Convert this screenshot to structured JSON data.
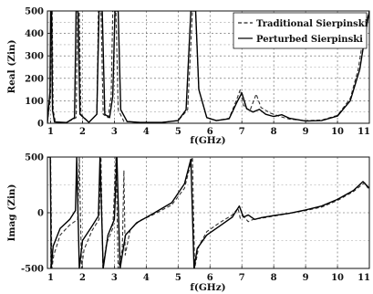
{
  "chart_data": [
    {
      "type": "line",
      "xlabel": "f(GHz)",
      "ylabel": "Real (Zin)",
      "xlim": [
        0.9,
        11
      ],
      "ylim": [
        0,
        500
      ],
      "xticks": [
        1,
        2,
        3,
        4,
        5,
        6,
        7,
        8,
        9,
        10,
        11
      ],
      "yticks": [
        0,
        100,
        200,
        300,
        400,
        500
      ],
      "grid": true,
      "legend": "top-right",
      "series": [
        {
          "name": "Traditional Sierpinski",
          "style": "dashed",
          "points": [
            [
              0.9,
              3
            ],
            [
              1.0,
              120
            ],
            [
              1.02,
              500
            ],
            [
              1.05,
              500
            ],
            [
              1.08,
              60
            ],
            [
              1.15,
              6
            ],
            [
              1.5,
              3
            ],
            [
              1.8,
              25
            ],
            [
              1.85,
              500
            ],
            [
              1.9,
              500
            ],
            [
              1.95,
              40
            ],
            [
              2.2,
              4
            ],
            [
              2.45,
              40
            ],
            [
              2.5,
              500
            ],
            [
              2.58,
              500
            ],
            [
              2.65,
              40
            ],
            [
              2.8,
              25
            ],
            [
              2.9,
              120
            ],
            [
              2.95,
              500
            ],
            [
              3.05,
              500
            ],
            [
              3.12,
              60
            ],
            [
              3.3,
              8
            ],
            [
              3.8,
              4
            ],
            [
              4.5,
              4
            ],
            [
              5.0,
              12
            ],
            [
              5.3,
              60
            ],
            [
              5.45,
              500
            ],
            [
              5.55,
              500
            ],
            [
              5.65,
              150
            ],
            [
              5.9,
              25
            ],
            [
              6.2,
              12
            ],
            [
              6.6,
              22
            ],
            [
              6.85,
              110
            ],
            [
              6.95,
              150
            ],
            [
              7.05,
              80
            ],
            [
              7.25,
              55
            ],
            [
              7.45,
              130
            ],
            [
              7.6,
              70
            ],
            [
              7.9,
              45
            ],
            [
              8.2,
              30
            ],
            [
              8.5,
              18
            ],
            [
              9.0,
              12
            ],
            [
              9.5,
              14
            ],
            [
              10.0,
              35
            ],
            [
              10.4,
              110
            ],
            [
              10.65,
              240
            ],
            [
              10.85,
              420
            ],
            [
              11.0,
              500
            ]
          ]
        },
        {
          "name": "Perturbed Sierpinski",
          "style": "solid",
          "points": [
            [
              0.9,
              3
            ],
            [
              0.98,
              140
            ],
            [
              1.0,
              500
            ],
            [
              1.03,
              500
            ],
            [
              1.06,
              60
            ],
            [
              1.12,
              6
            ],
            [
              1.5,
              3
            ],
            [
              1.75,
              25
            ],
            [
              1.8,
              500
            ],
            [
              1.86,
              500
            ],
            [
              1.92,
              40
            ],
            [
              2.2,
              4
            ],
            [
              2.45,
              40
            ],
            [
              2.52,
              500
            ],
            [
              2.62,
              500
            ],
            [
              2.7,
              40
            ],
            [
              2.85,
              25
            ],
            [
              2.95,
              120
            ],
            [
              3.02,
              500
            ],
            [
              3.12,
              500
            ],
            [
              3.2,
              60
            ],
            [
              3.4,
              8
            ],
            [
              3.8,
              4
            ],
            [
              4.5,
              4
            ],
            [
              5.0,
              12
            ],
            [
              5.25,
              60
            ],
            [
              5.4,
              500
            ],
            [
              5.55,
              500
            ],
            [
              5.65,
              150
            ],
            [
              5.9,
              25
            ],
            [
              6.2,
              12
            ],
            [
              6.6,
              20
            ],
            [
              6.85,
              95
            ],
            [
              7.0,
              135
            ],
            [
              7.15,
              65
            ],
            [
              7.35,
              50
            ],
            [
              7.55,
              62
            ],
            [
              7.75,
              40
            ],
            [
              8.0,
              30
            ],
            [
              8.25,
              38
            ],
            [
              8.5,
              22
            ],
            [
              9.0,
              10
            ],
            [
              9.5,
              12
            ],
            [
              10.0,
              32
            ],
            [
              10.4,
              100
            ],
            [
              10.7,
              240
            ],
            [
              10.9,
              420
            ],
            [
              11.0,
              500
            ]
          ]
        }
      ]
    },
    {
      "type": "line",
      "xlabel": "f(GHz)",
      "ylabel": "Imag (Zin)",
      "xlim": [
        0.9,
        11
      ],
      "ylim": [
        -500,
        500
      ],
      "xticks": [
        1,
        2,
        3,
        4,
        5,
        6,
        7,
        8,
        9,
        10,
        11
      ],
      "yticks": [
        -500,
        0,
        500
      ],
      "grid": true,
      "series": [
        {
          "name": "Traditional Sierpinski",
          "style": "dashed",
          "points": [
            [
              0.9,
              500
            ],
            [
              1.0,
              500
            ],
            [
              1.04,
              -500
            ],
            [
              1.1,
              -380
            ],
            [
              1.3,
              -200
            ],
            [
              1.6,
              -110
            ],
            [
              1.85,
              -60
            ],
            [
              1.9,
              500
            ],
            [
              1.97,
              -500
            ],
            [
              2.05,
              -330
            ],
            [
              2.3,
              -160
            ],
            [
              2.52,
              -60
            ],
            [
              2.58,
              500
            ],
            [
              2.64,
              -500
            ],
            [
              2.75,
              -280
            ],
            [
              2.95,
              -140
            ],
            [
              3.05,
              500
            ],
            [
              3.12,
              -500
            ],
            [
              3.25,
              -330
            ],
            [
              3.3,
              380
            ],
            [
              3.34,
              -380
            ],
            [
              3.5,
              -150
            ],
            [
              3.8,
              -70
            ],
            [
              4.2,
              -20
            ],
            [
              4.8,
              70
            ],
            [
              5.2,
              220
            ],
            [
              5.45,
              500
            ],
            [
              5.52,
              -500
            ],
            [
              5.65,
              -300
            ],
            [
              5.9,
              -170
            ],
            [
              6.3,
              -90
            ],
            [
              6.7,
              -20
            ],
            [
              6.88,
              40
            ],
            [
              6.95,
              -50
            ],
            [
              7.05,
              -30
            ],
            [
              7.2,
              -80
            ],
            [
              7.4,
              -55
            ],
            [
              7.6,
              -50
            ],
            [
              8.0,
              -30
            ],
            [
              8.5,
              -5
            ],
            [
              9.0,
              20
            ],
            [
              9.5,
              50
            ],
            [
              10.0,
              110
            ],
            [
              10.5,
              190
            ],
            [
              10.85,
              270
            ],
            [
              11.0,
              200
            ]
          ]
        },
        {
          "name": "Perturbed Sierpinski",
          "style": "solid",
          "points": [
            [
              0.9,
              500
            ],
            [
              0.99,
              500
            ],
            [
              1.02,
              -500
            ],
            [
              1.08,
              -300
            ],
            [
              1.3,
              -140
            ],
            [
              1.6,
              -60
            ],
            [
              1.78,
              20
            ],
            [
              1.82,
              500
            ],
            [
              1.9,
              -500
            ],
            [
              2.0,
              -250
            ],
            [
              2.3,
              -120
            ],
            [
              2.5,
              -30
            ],
            [
              2.55,
              500
            ],
            [
              2.65,
              -500
            ],
            [
              2.8,
              -200
            ],
            [
              3.0,
              -60
            ],
            [
              3.08,
              500
            ],
            [
              3.18,
              -500
            ],
            [
              3.35,
              -200
            ],
            [
              3.7,
              -90
            ],
            [
              4.2,
              -10
            ],
            [
              4.8,
              90
            ],
            [
              5.2,
              260
            ],
            [
              5.4,
              480
            ],
            [
              5.5,
              -500
            ],
            [
              5.6,
              -320
            ],
            [
              5.9,
              -200
            ],
            [
              6.3,
              -120
            ],
            [
              6.7,
              -40
            ],
            [
              6.92,
              60
            ],
            [
              7.05,
              -40
            ],
            [
              7.2,
              -20
            ],
            [
              7.4,
              -60
            ],
            [
              7.6,
              -45
            ],
            [
              8.0,
              -25
            ],
            [
              8.5,
              -5
            ],
            [
              9.0,
              25
            ],
            [
              9.5,
              60
            ],
            [
              10.0,
              120
            ],
            [
              10.5,
              200
            ],
            [
              10.8,
              280
            ],
            [
              11.0,
              220
            ]
          ]
        }
      ]
    }
  ]
}
